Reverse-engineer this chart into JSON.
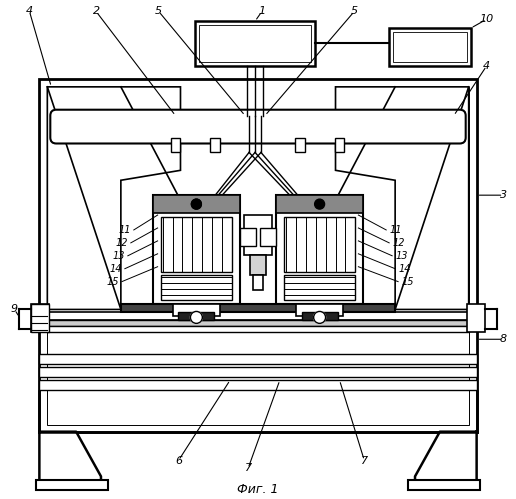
{
  "title": "Фиг. 1",
  "bg_color": "#ffffff",
  "line_color": "#000000"
}
